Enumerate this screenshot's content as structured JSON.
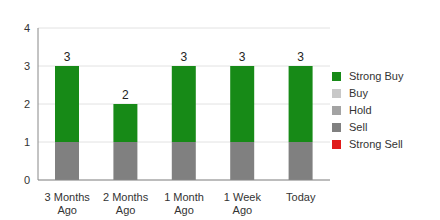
{
  "chart_data": {
    "type": "bar",
    "stacked": true,
    "categories": [
      "3 Months Ago",
      "2 Months Ago",
      "1 Month Ago",
      "1 Week Ago",
      "Today"
    ],
    "series": [
      {
        "name": "Strong Buy",
        "color": "#178a17",
        "values": [
          2,
          1,
          2,
          2,
          2
        ]
      },
      {
        "name": "Buy",
        "color": "#c8c8c8",
        "values": [
          0,
          0,
          0,
          0,
          0
        ]
      },
      {
        "name": "Hold",
        "color": "#a3a3a3",
        "values": [
          0,
          0,
          0,
          0,
          0
        ]
      },
      {
        "name": "Sell",
        "color": "#808080",
        "values": [
          1,
          1,
          1,
          1,
          1
        ]
      },
      {
        "name": "Strong Sell",
        "color": "#e01b1b",
        "values": [
          0,
          0,
          0,
          0,
          0
        ]
      }
    ],
    "totals": [
      3,
      2,
      3,
      3,
      3
    ],
    "ylim": [
      0,
      4
    ],
    "yticks": [
      0,
      1,
      2,
      3,
      4
    ],
    "grid": true,
    "legend": "right"
  }
}
